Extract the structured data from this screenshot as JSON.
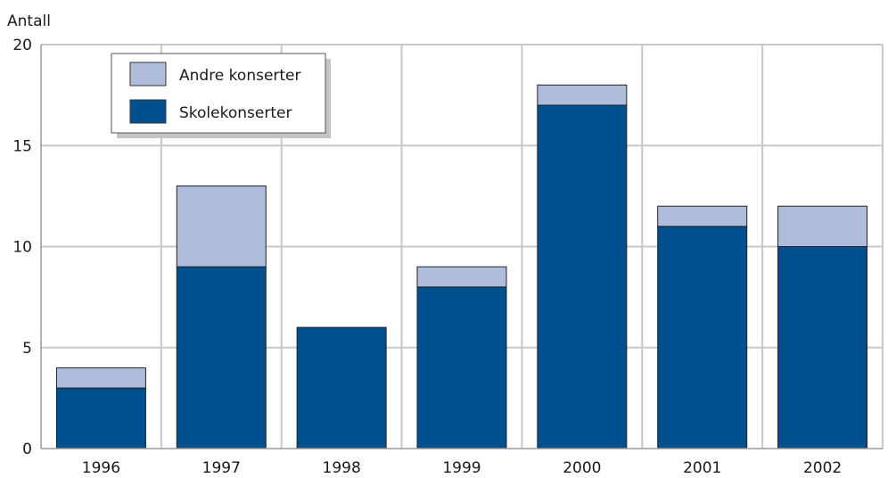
{
  "chart_data": {
    "type": "bar",
    "stacked": true,
    "categories": [
      "1996",
      "1997",
      "1998",
      "1999",
      "2000",
      "2001",
      "2002"
    ],
    "series": [
      {
        "name": "Skolekonserter",
        "values": [
          3,
          9,
          6,
          8,
          17,
          11,
          10
        ],
        "color": "#00508f"
      },
      {
        "name": "Andre konserter",
        "values": [
          1,
          4,
          0,
          1,
          1,
          1,
          2
        ],
        "color": "#b0bcdb"
      }
    ],
    "legend_order": [
      "Andre konserter",
      "Skolekonserter"
    ],
    "ylabel": "Antall",
    "ylim": [
      0,
      20
    ],
    "yticks": [
      0,
      5,
      10,
      15,
      20
    ],
    "grid": true,
    "legend_position": "top-left",
    "grid_color": "#c8c8c8",
    "axis_color": "#9a9a9a"
  }
}
